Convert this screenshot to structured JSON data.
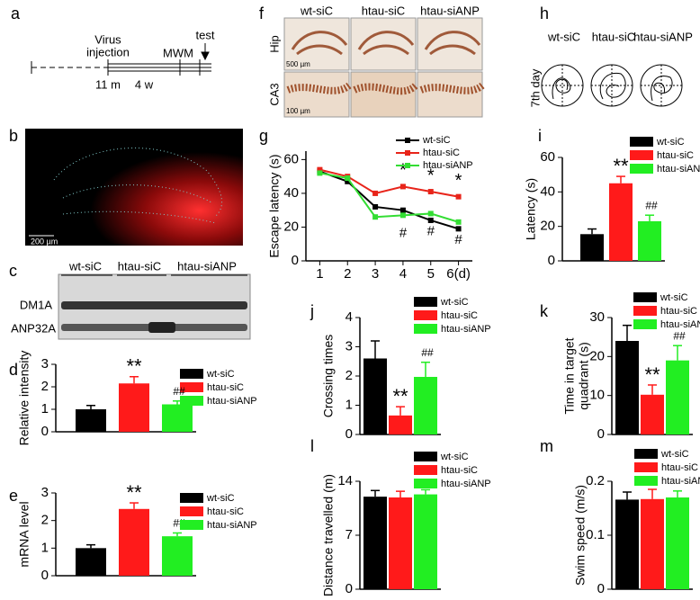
{
  "panels": {
    "a": {
      "label": "a",
      "event": [
        "Virus",
        "injection"
      ],
      "mwm": "MWM",
      "test": "test",
      "age": "11 m",
      "duration": "4 w"
    },
    "b": {
      "label": "b",
      "scale": "200 µm"
    },
    "c": {
      "label": "c",
      "columns": [
        "wt-siC",
        "htau-siC",
        "htau-siANP"
      ],
      "rows": [
        "DM1A",
        "ANP32A"
      ]
    },
    "f": {
      "label": "f",
      "columns": [
        "wt-siC",
        "htau-siC",
        "htau-siANP"
      ],
      "rows": [
        "Hip",
        "CA3"
      ],
      "scales": [
        "500 µm",
        "100 µm"
      ]
    },
    "h": {
      "label": "h",
      "row": "7th day",
      "columns": [
        "wt-siC",
        "htau-siC",
        "htau-siANP"
      ]
    }
  },
  "chart_data": [
    {
      "type": "bar",
      "panel": "d",
      "ylabel": "Relative intensity",
      "categories": [
        "wt-siC",
        "htau-siC",
        "htau-siANP"
      ],
      "colors": [
        "#000000",
        "#ff1a1a",
        "#22ee22"
      ],
      "values": [
        1.0,
        2.15,
        1.22
      ],
      "errors": [
        0.17,
        0.3,
        0.15
      ],
      "annotations": [
        null,
        "**",
        "##"
      ],
      "ylim": [
        0,
        3
      ],
      "yticks": [
        0,
        1,
        2,
        3
      ]
    },
    {
      "type": "bar",
      "panel": "e",
      "ylabel": "mRNA level",
      "categories": [
        "wt-siC",
        "htau-siC",
        "htau-siANP"
      ],
      "colors": [
        "#000000",
        "#ff1a1a",
        "#22ee22"
      ],
      "values": [
        1.0,
        2.42,
        1.43
      ],
      "errors": [
        0.12,
        0.22,
        0.12
      ],
      "annotations": [
        null,
        "**",
        "##"
      ],
      "ylim": [
        0,
        3
      ],
      "yticks": [
        0,
        1,
        2,
        3
      ]
    },
    {
      "type": "line",
      "panel": "g",
      "ylabel": "Escape latency (s)",
      "x": [
        1,
        2,
        3,
        4,
        5,
        6
      ],
      "xlim": [
        0.5,
        6.5
      ],
      "xticks": [
        1,
        2,
        3,
        4,
        5,
        {
          "value": 6,
          "label": "6(d)"
        }
      ],
      "ylim": [
        0,
        65
      ],
      "yticks": [
        0,
        20,
        40,
        60
      ],
      "series": [
        {
          "name": "wt-siC",
          "color": "#000000",
          "values": [
            53,
            47,
            32,
            30,
            24,
            19
          ]
        },
        {
          "name": "htau-siC",
          "color": "#e8241a",
          "values": [
            54,
            50,
            40,
            44,
            41,
            38
          ],
          "annotations": [
            null,
            null,
            null,
            "*",
            "*",
            "*"
          ]
        },
        {
          "name": "htau-siANP",
          "color": "#33dd33",
          "values": [
            52,
            49,
            26,
            27,
            28,
            23
          ],
          "annotations": [
            null,
            null,
            null,
            "#",
            "#",
            "#"
          ]
        }
      ]
    },
    {
      "type": "bar",
      "panel": "i",
      "ylabel": "Latency (s)",
      "categories": [
        "wt-siC",
        "htau-siC",
        "htau-siANP"
      ],
      "colors": [
        "#000000",
        "#ff1a1a",
        "#22ee22"
      ],
      "values": [
        15.5,
        45,
        23
      ],
      "errors": [
        3,
        4,
        3.5
      ],
      "annotations": [
        null,
        "**",
        "##"
      ],
      "ylim": [
        0,
        60
      ],
      "yticks": [
        0,
        20,
        40,
        60
      ]
    },
    {
      "type": "bar",
      "panel": "j",
      "ylabel": "Crossing times",
      "categories": [
        "wt-siC",
        "htau-siC",
        "htau-siANP"
      ],
      "colors": [
        "#000000",
        "#ff1a1a",
        "#22ee22"
      ],
      "values": [
        2.6,
        0.65,
        1.97
      ],
      "errors": [
        0.6,
        0.3,
        0.5
      ],
      "annotations": [
        null,
        "**",
        "##"
      ],
      "ylim": [
        0,
        4
      ],
      "yticks": [
        0,
        1,
        2,
        3,
        4
      ]
    },
    {
      "type": "bar",
      "panel": "k",
      "ylabel": [
        "Time in target",
        "quadrant (s)"
      ],
      "categories": [
        "wt-siC",
        "htau-siC",
        "htau-siANP"
      ],
      "colors": [
        "#000000",
        "#ff1a1a",
        "#22ee22"
      ],
      "values": [
        24,
        10.2,
        19
      ],
      "errors": [
        4,
        2.5,
        3.8
      ],
      "annotations": [
        null,
        "**",
        "##"
      ],
      "ylim": [
        0,
        30
      ],
      "yticks": [
        0,
        10,
        20,
        30
      ]
    },
    {
      "type": "bar",
      "panel": "l",
      "ylabel": "Distance travelled (m)",
      "categories": [
        "wt-siC",
        "htau-siC",
        "htau-siANP"
      ],
      "colors": [
        "#000000",
        "#ff1a1a",
        "#22ee22"
      ],
      "values": [
        12,
        11.9,
        12.3
      ],
      "errors": [
        0.8,
        0.8,
        0.6
      ],
      "ylim": [
        0,
        14
      ],
      "yticks": [
        0,
        7,
        14
      ]
    },
    {
      "type": "bar",
      "panel": "m",
      "ylabel": "Swim speed (m/s)",
      "categories": [
        "wt-siC",
        "htau-siC",
        "htau-siANP"
      ],
      "colors": [
        "#000000",
        "#ff1a1a",
        "#22ee22"
      ],
      "values": [
        0.166,
        0.167,
        0.17
      ],
      "errors": [
        0.014,
        0.018,
        0.012
      ],
      "ylim": [
        0,
        0.2
      ],
      "yticks": [
        0,
        0.1,
        0.2
      ]
    }
  ]
}
